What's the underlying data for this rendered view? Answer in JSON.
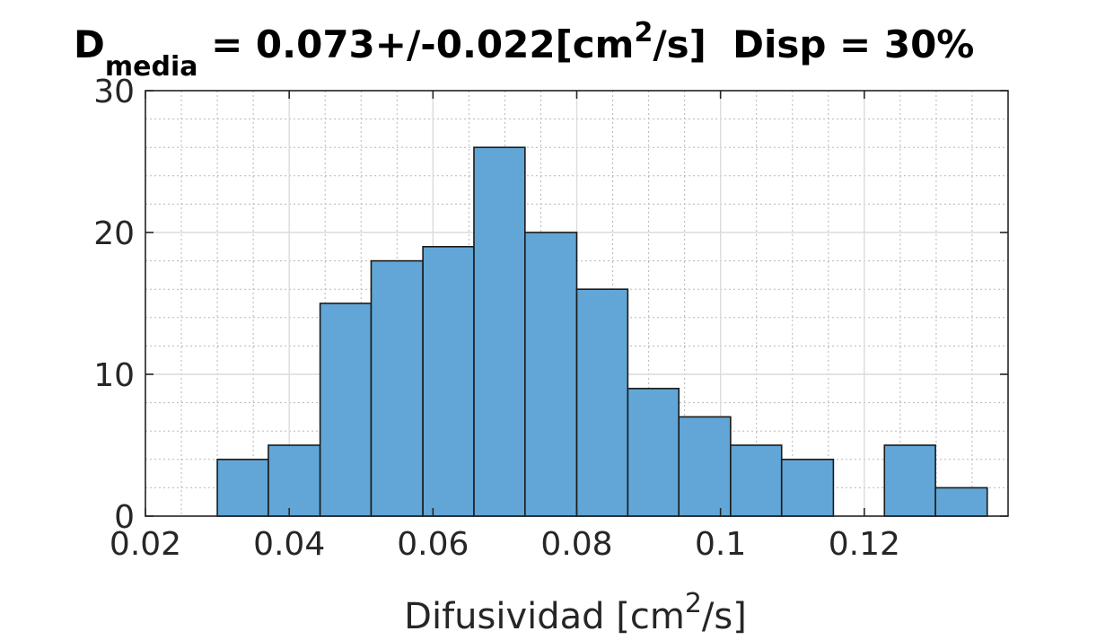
{
  "chart_data": {
    "type": "bar",
    "title": {
      "main": "D",
      "sub": "media",
      "rest_a": " = 0.073+/-0.022[cm",
      "sup": "2",
      "rest_b": "/s]  Disp = 30%"
    },
    "xlabel": {
      "main": "Difusividad [cm",
      "sup": "2",
      "rest": "/s]"
    },
    "ylabel": "",
    "xlim": [
      0.02,
      0.14
    ],
    "ylim": [
      0,
      30
    ],
    "xticks": [
      0.02,
      0.04,
      0.06,
      0.08,
      0.1,
      0.12
    ],
    "xtick_labels": [
      "0.02",
      "0.04",
      "0.06",
      "0.08",
      "0.1",
      "0.12"
    ],
    "yticks": [
      0,
      10,
      20,
      30
    ],
    "ytick_labels": [
      "0",
      "10",
      "20",
      "30"
    ],
    "grid": true,
    "minor_grid": true,
    "bar_color": "#61a6d6",
    "edge_color": "#1a1a1a",
    "bins": [
      {
        "x0": 0.03,
        "x1": 0.0371,
        "count": 4
      },
      {
        "x0": 0.0371,
        "x1": 0.0443,
        "count": 5
      },
      {
        "x0": 0.0443,
        "x1": 0.0514,
        "count": 15
      },
      {
        "x0": 0.0514,
        "x1": 0.0586,
        "count": 18
      },
      {
        "x0": 0.0586,
        "x1": 0.0657,
        "count": 19
      },
      {
        "x0": 0.0657,
        "x1": 0.0728,
        "count": 26
      },
      {
        "x0": 0.0728,
        "x1": 0.08,
        "count": 20
      },
      {
        "x0": 0.08,
        "x1": 0.0871,
        "count": 16
      },
      {
        "x0": 0.0871,
        "x1": 0.0942,
        "count": 9
      },
      {
        "x0": 0.0942,
        "x1": 0.1014,
        "count": 7
      },
      {
        "x0": 0.1014,
        "x1": 0.1085,
        "count": 5
      },
      {
        "x0": 0.1085,
        "x1": 0.1157,
        "count": 4
      },
      {
        "x0": 0.1157,
        "x1": 0.1228,
        "count": 0
      },
      {
        "x0": 0.1228,
        "x1": 0.1299,
        "count": 5
      },
      {
        "x0": 0.1299,
        "x1": 0.1371,
        "count": 2
      }
    ]
  }
}
